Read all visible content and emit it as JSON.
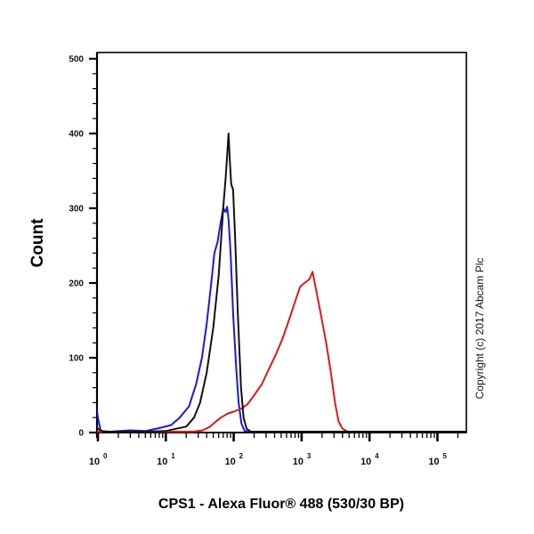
{
  "chart_data": {
    "type": "line",
    "title": "",
    "xlabel": "CPS1 - Alexa Fluor® 488 (530/30 BP)",
    "ylabel": "Count",
    "xscale": "log",
    "xlim": [
      1,
      300000
    ],
    "ylim": [
      0,
      500
    ],
    "grid": false,
    "legend": "none",
    "y_ticks": [
      0,
      100,
      200,
      300,
      400,
      500
    ],
    "x_ticks": [
      {
        "base": "10",
        "exp": "0",
        "value": 1
      },
      {
        "base": "10",
        "exp": "1",
        "value": 10
      },
      {
        "base": "10",
        "exp": "2",
        "value": 100
      },
      {
        "base": "10",
        "exp": "3",
        "value": 1000
      },
      {
        "base": "10",
        "exp": "4",
        "value": 10000
      },
      {
        "base": "10",
        "exp": "5",
        "value": 100000
      }
    ],
    "annotation": "Copyright (c) 2017 Abcam Plc",
    "series": [
      {
        "name": "blue",
        "color": "#1a1adc",
        "points": [
          [
            0.9,
            50
          ],
          [
            1.0,
            20
          ],
          [
            1.1,
            2
          ],
          [
            1.5,
            0
          ],
          [
            3,
            3
          ],
          [
            5,
            2
          ],
          [
            8,
            6
          ],
          [
            12,
            10
          ],
          [
            16,
            20
          ],
          [
            22,
            35
          ],
          [
            28,
            65
          ],
          [
            34,
            100
          ],
          [
            40,
            145
          ],
          [
            46,
            195
          ],
          [
            52,
            240
          ],
          [
            58,
            255
          ],
          [
            64,
            280
          ],
          [
            70,
            300
          ],
          [
            76,
            295
          ],
          [
            80,
            302
          ],
          [
            84,
            285
          ],
          [
            90,
            240
          ],
          [
            98,
            160
          ],
          [
            108,
            90
          ],
          [
            118,
            40
          ],
          [
            130,
            12
          ],
          [
            145,
            2
          ],
          [
            170,
            0
          ],
          [
            300000,
            0
          ]
        ]
      },
      {
        "name": "black",
        "color": "#111111",
        "points": [
          [
            0.9,
            12
          ],
          [
            1.0,
            5
          ],
          [
            1.2,
            0
          ],
          [
            5,
            0
          ],
          [
            10,
            2
          ],
          [
            14,
            5
          ],
          [
            20,
            8
          ],
          [
            26,
            20
          ],
          [
            32,
            40
          ],
          [
            40,
            80
          ],
          [
            50,
            140
          ],
          [
            60,
            210
          ],
          [
            70,
            300
          ],
          [
            76,
            340
          ],
          [
            80,
            370
          ],
          [
            84,
            400
          ],
          [
            88,
            360
          ],
          [
            92,
            332
          ],
          [
            98,
            325
          ],
          [
            105,
            260
          ],
          [
            115,
            160
          ],
          [
            128,
            60
          ],
          [
            140,
            20
          ],
          [
            155,
            5
          ],
          [
            180,
            0
          ],
          [
            300000,
            0
          ]
        ]
      },
      {
        "name": "red",
        "color": "#e01818",
        "points": [
          [
            0.9,
            0
          ],
          [
            25,
            0
          ],
          [
            35,
            3
          ],
          [
            45,
            8
          ],
          [
            55,
            15
          ],
          [
            65,
            20
          ],
          [
            80,
            25
          ],
          [
            100,
            28
          ],
          [
            130,
            32
          ],
          [
            160,
            38
          ],
          [
            200,
            50
          ],
          [
            260,
            65
          ],
          [
            330,
            85
          ],
          [
            420,
            105
          ],
          [
            520,
            125
          ],
          [
            650,
            150
          ],
          [
            800,
            175
          ],
          [
            950,
            195
          ],
          [
            1100,
            200
          ],
          [
            1300,
            205
          ],
          [
            1450,
            215
          ],
          [
            1600,
            195
          ],
          [
            1900,
            160
          ],
          [
            2300,
            120
          ],
          [
            2700,
            80
          ],
          [
            3100,
            40
          ],
          [
            3500,
            15
          ],
          [
            4000,
            5
          ],
          [
            4800,
            0
          ],
          [
            300000,
            0
          ]
        ]
      }
    ]
  },
  "copyright": "Copyright (c) 2017 Abcam Plc"
}
